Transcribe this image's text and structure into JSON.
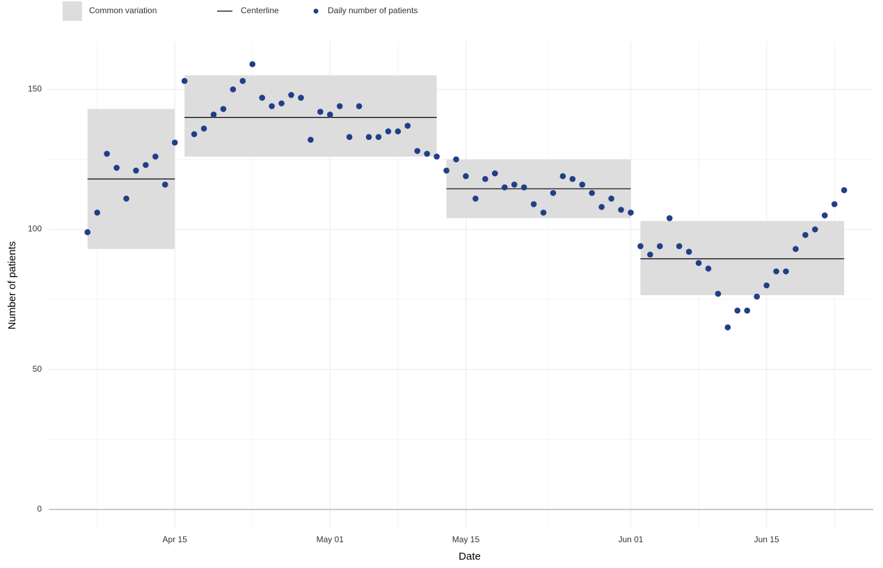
{
  "chart_data": {
    "type": "control",
    "xlabel": "Date",
    "ylabel": "Number of patients",
    "x": [
      "Apr 06",
      "Apr 07",
      "Apr 08",
      "Apr 09",
      "Apr 10",
      "Apr 11",
      "Apr 12",
      "Apr 13",
      "Apr 14",
      "Apr 15",
      "Apr 16",
      "Apr 17",
      "Apr 18",
      "Apr 19",
      "Apr 20",
      "Apr 21",
      "Apr 22",
      "Apr 23",
      "Apr 24",
      "Apr 25",
      "Apr 26",
      "Apr 27",
      "Apr 28",
      "Apr 29",
      "Apr 30",
      "May 01",
      "May 02",
      "May 03",
      "May 04",
      "May 05",
      "May 06",
      "May 07",
      "May 08",
      "May 09",
      "May 10",
      "May 11",
      "May 12",
      "May 13",
      "May 14",
      "May 15",
      "May 16",
      "May 17",
      "May 18",
      "May 19",
      "May 20",
      "May 21",
      "May 22",
      "May 23",
      "May 24",
      "May 25",
      "May 26",
      "May 27",
      "May 28",
      "May 29",
      "May 30",
      "May 31",
      "Jun 01",
      "Jun 02",
      "Jun 03",
      "Jun 04",
      "Jun 05",
      "Jun 06",
      "Jun 07",
      "Jun 08",
      "Jun 09",
      "Jun 10",
      "Jun 11",
      "Jun 12",
      "Jun 13",
      "Jun 14",
      "Jun 15",
      "Jun 16",
      "Jun 17",
      "Jun 18",
      "Jun 19",
      "Jun 20",
      "Jun 21",
      "Jun 22",
      "Jun 23"
    ],
    "series": [
      {
        "name": "Daily number of patients",
        "color": "#1f3f86",
        "values": [
          99,
          106,
          127,
          122,
          111,
          121,
          123,
          126,
          116,
          131,
          153,
          134,
          136,
          141,
          143,
          150,
          153,
          159,
          147,
          144,
          145,
          148,
          147,
          132,
          142,
          141,
          144,
          133,
          144,
          133,
          133,
          135,
          135,
          137,
          128,
          127,
          126,
          121,
          125,
          119,
          111,
          118,
          120,
          115,
          116,
          115,
          109,
          106,
          113,
          119,
          118,
          116,
          113,
          108,
          111,
          107,
          106,
          94,
          91,
          94,
          104,
          94,
          92,
          88,
          86,
          77,
          65,
          71,
          71,
          76,
          80,
          85,
          85,
          93,
          98,
          100,
          105,
          109,
          114
        ]
      }
    ],
    "band": {
      "name": "Common variation",
      "color": "#dddddd"
    },
    "centerline": {
      "name": "Centerline",
      "color": "#000000"
    },
    "phases": [
      {
        "start": "Apr 06",
        "end": "Apr 15",
        "lower": 93,
        "upper": 143,
        "center": 118
      },
      {
        "start": "Apr 16",
        "end": "May 12",
        "lower": 126,
        "upper": 155,
        "center": 140
      },
      {
        "start": "May 13",
        "end": "Jun 01",
        "lower": 104,
        "upper": 125,
        "center": 114.5
      },
      {
        "start": "Jun 02",
        "end": "Jun 23",
        "lower": 76.5,
        "upper": 103,
        "center": 89.5
      }
    ],
    "xlim": [
      "Apr 02",
      "Jun 26"
    ],
    "xticks": [
      "Apr 15",
      "May 01",
      "May 15",
      "Jun 01",
      "Jun 15"
    ],
    "ylim": [
      -7,
      167
    ],
    "yticks": [
      0,
      50,
      100,
      150
    ],
    "minor_yticks": [
      25,
      75,
      125
    ],
    "grid": true,
    "legend": "top-left"
  }
}
